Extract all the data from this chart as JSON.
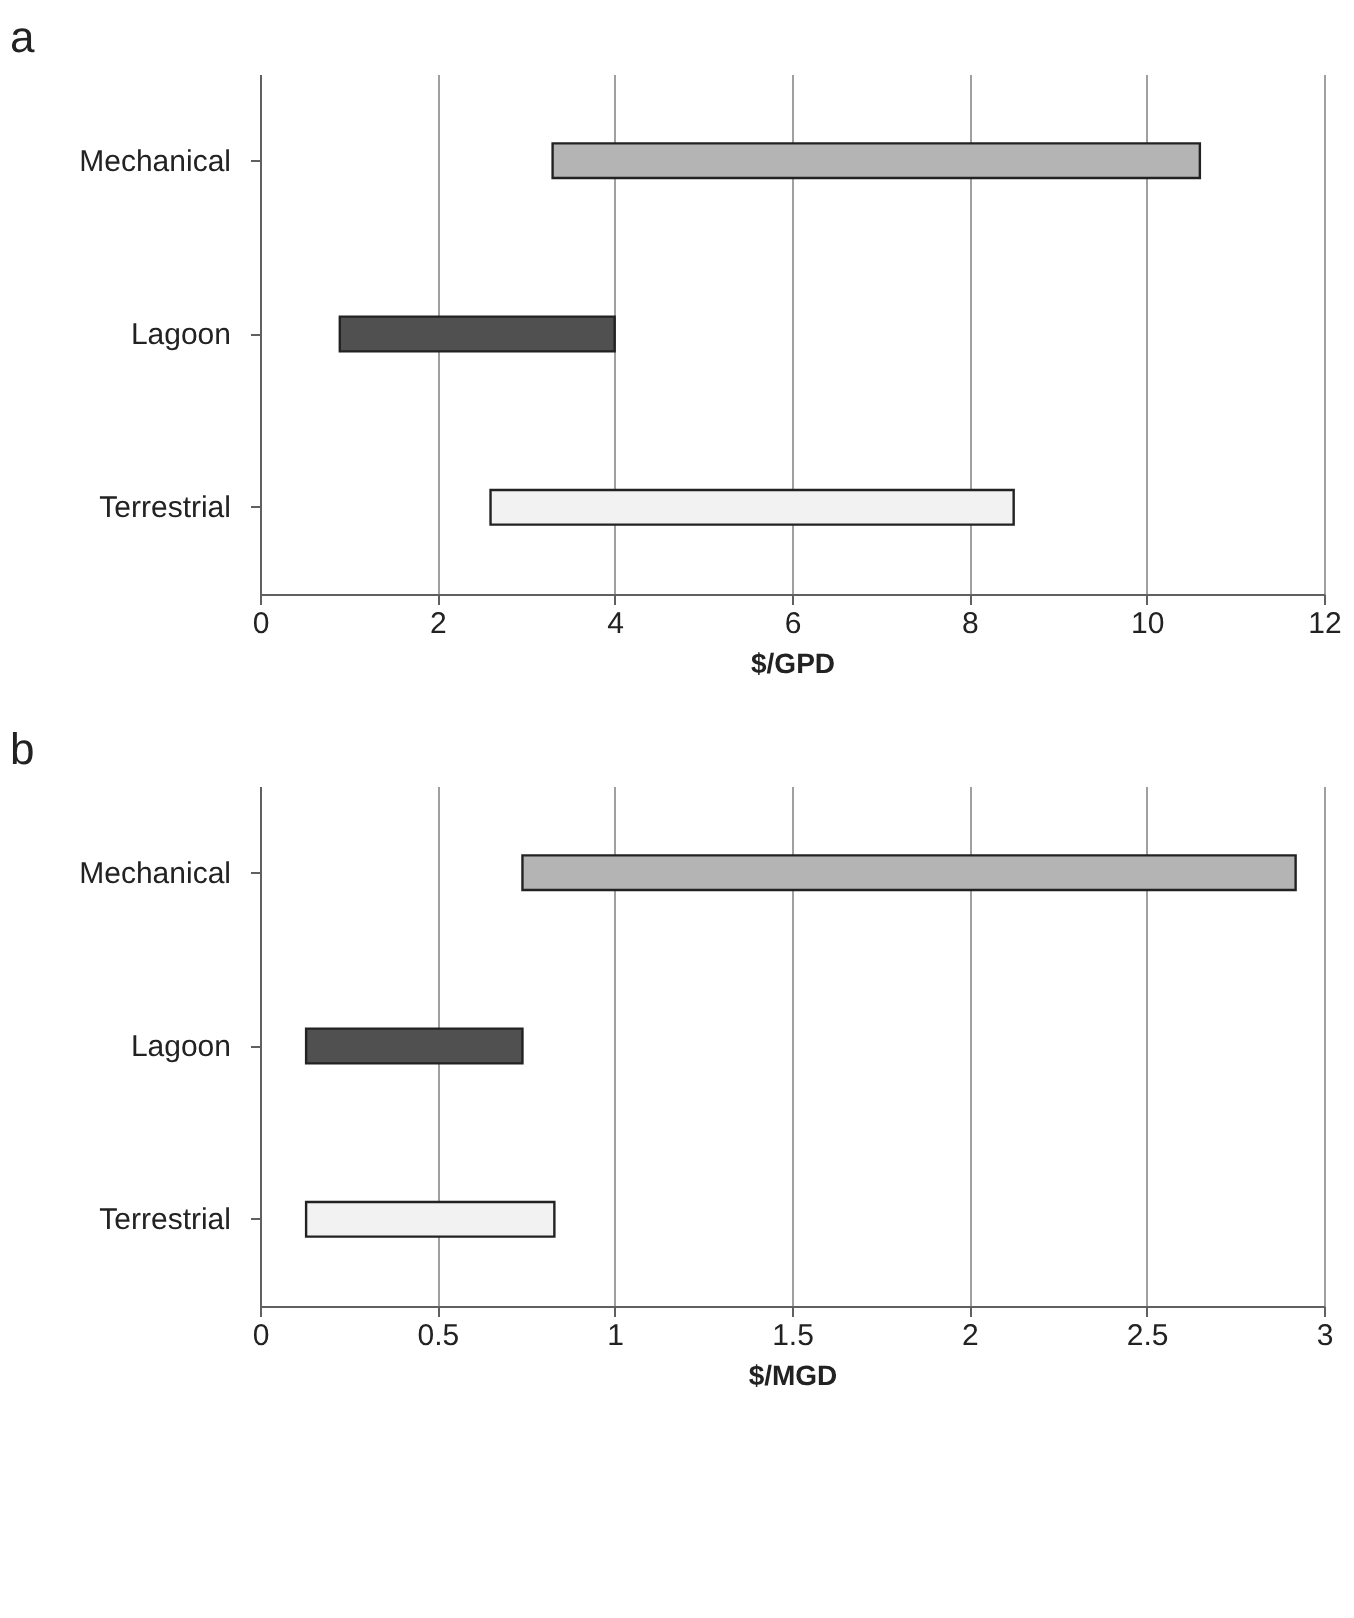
{
  "chart_data": [
    {
      "type": "bar",
      "title": "a",
      "orientation": "horizontal",
      "categories": [
        "Mechanical",
        "Lagoon",
        "Terrestrial"
      ],
      "base": [
        3.3,
        0.9,
        2.6
      ],
      "values": [
        7.3,
        3.1,
        5.9
      ],
      "colors": [
        "#b4b4b4",
        "#505050",
        "#f2f2f2"
      ],
      "xlim": [
        0,
        12
      ],
      "xticks": [
        0,
        2,
        4,
        6,
        8,
        10,
        12
      ],
      "xlabel": "$/GPD",
      "grid": "x"
    },
    {
      "type": "bar",
      "title": "b",
      "orientation": "horizontal",
      "categories": [
        "Mechanical",
        "Lagoon",
        "Terrestrial"
      ],
      "base": [
        0.74,
        0.13,
        0.13
      ],
      "values": [
        2.18,
        0.61,
        0.7
      ],
      "colors": [
        "#b4b4b4",
        "#505050",
        "#f2f2f2"
      ],
      "xlim": [
        0,
        3
      ],
      "xticks": [
        0,
        0.5,
        1,
        1.5,
        2,
        2.5,
        3
      ],
      "xlabel": "$/MGD",
      "grid": "x"
    }
  ]
}
